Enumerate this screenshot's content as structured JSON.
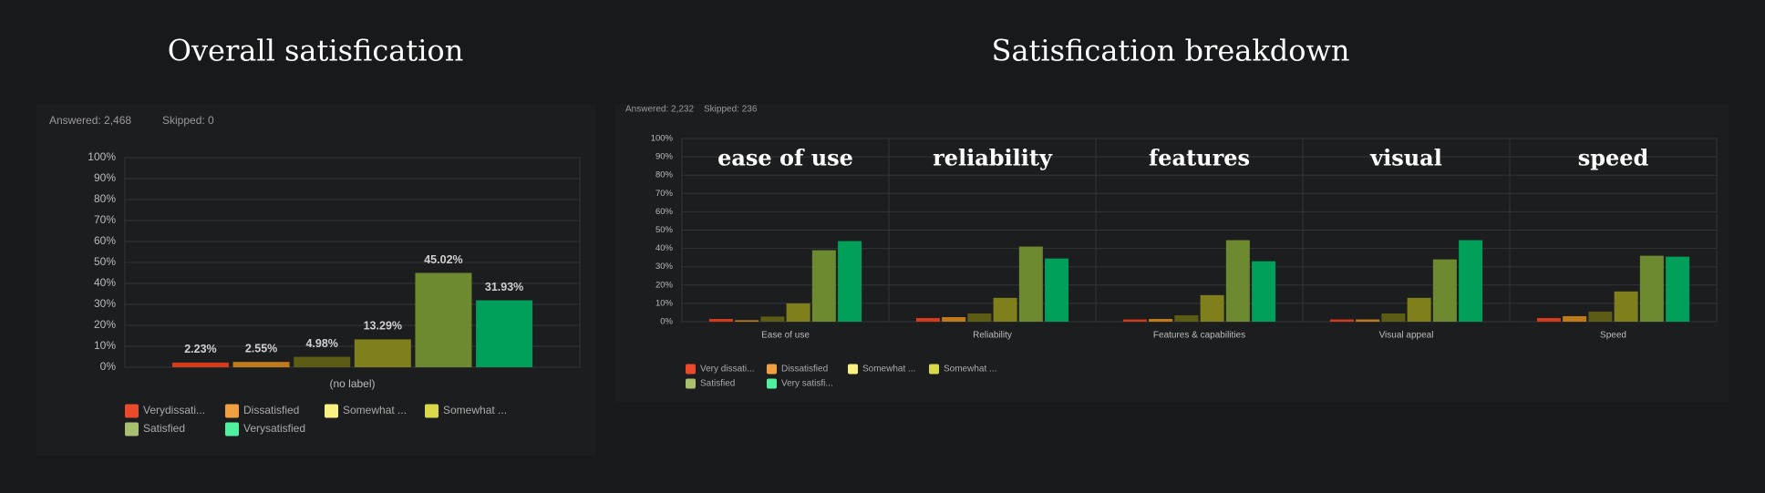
{
  "chart_data": [
    {
      "type": "bar",
      "title": "Overall satisfication",
      "answered": "Answered: 2,468",
      "skipped": "Skipped: 0",
      "categories": [
        "(no label)"
      ],
      "ylim": [
        0,
        100
      ],
      "yticks": [
        {
          "value": 0,
          "label": "0%"
        },
        {
          "value": 10,
          "label": "10%"
        },
        {
          "value": 20,
          "label": "20%"
        },
        {
          "value": 30,
          "label": "30%"
        },
        {
          "value": 40,
          "label": "40%"
        },
        {
          "value": 50,
          "label": "50%"
        },
        {
          "value": 60,
          "label": "60%"
        },
        {
          "value": 70,
          "label": "70%"
        },
        {
          "value": 80,
          "label": "80%"
        },
        {
          "value": 90,
          "label": "90%"
        },
        {
          "value": 100,
          "label": "100%"
        }
      ],
      "grid": true,
      "series": [
        {
          "name": "Verydissati...",
          "color": "#d63a1a",
          "legend_color": "#e84a2a",
          "values": [
            2.23
          ],
          "value_labels": [
            "2.23%"
          ]
        },
        {
          "name": "Dissatisfied",
          "color": "#c07a1a",
          "legend_color": "#f0a040",
          "values": [
            2.55
          ],
          "value_labels": [
            "2.55%"
          ]
        },
        {
          "name": "Somewhat ...",
          "color": "#5c5c14",
          "legend_color": "#f8f080",
          "values": [
            4.98
          ],
          "value_labels": [
            "4.98%"
          ]
        },
        {
          "name": "Somewhat ...",
          "color": "#7f7f1c",
          "legend_color": "#d8d848",
          "values": [
            13.29
          ],
          "value_labels": [
            "13.29%"
          ]
        },
        {
          "name": "Satisfied",
          "color": "#6e8a30",
          "legend_color": "#a8c070",
          "values": [
            45.02
          ],
          "value_labels": [
            "45.02%"
          ]
        },
        {
          "name": "Verysatisfied",
          "color": "#00a05a",
          "legend_color": "#50f0a0",
          "values": [
            31.93
          ],
          "value_labels": [
            "31.93%"
          ]
        }
      ]
    },
    {
      "type": "bar",
      "title": "Satisfication breakdown",
      "answered": "Answered: 2,232",
      "skipped": "Skipped: 236",
      "categories": [
        "Ease of use",
        "Reliability",
        "Features & capabilities",
        "Visual appeal",
        "Speed"
      ],
      "facet_labels": [
        "ease of use",
        "reliability",
        "features",
        "visual",
        "speed"
      ],
      "ylim": [
        0,
        100
      ],
      "yticks": [
        {
          "value": 0,
          "label": "0%"
        },
        {
          "value": 10,
          "label": "10%"
        },
        {
          "value": 20,
          "label": "20%"
        },
        {
          "value": 30,
          "label": "30%"
        },
        {
          "value": 40,
          "label": "40%"
        },
        {
          "value": 50,
          "label": "50%"
        },
        {
          "value": 60,
          "label": "60%"
        },
        {
          "value": 70,
          "label": "70%"
        },
        {
          "value": 80,
          "label": "80%"
        },
        {
          "value": 90,
          "label": "90%"
        },
        {
          "value": 100,
          "label": "100%"
        }
      ],
      "grid": true,
      "series": [
        {
          "name": "Very dissati...",
          "color": "#d63a1a",
          "legend_color": "#e84a2a",
          "values": [
            1.5,
            2,
            1.2,
            1.2,
            2
          ]
        },
        {
          "name": "Dissatisfied",
          "color": "#c07a1a",
          "legend_color": "#f0a040",
          "values": [
            0.8,
            2.5,
            1.5,
            1.2,
            3
          ]
        },
        {
          "name": "Somewhat ...",
          "color": "#5c5c14",
          "legend_color": "#f8f080",
          "values": [
            2.8,
            4.5,
            3.5,
            4.5,
            5.5
          ]
        },
        {
          "name": "Somewhat ...",
          "color": "#7f7f1c",
          "legend_color": "#d8d848",
          "values": [
            10,
            13,
            14.5,
            13,
            16.5
          ]
        },
        {
          "name": "Satisfied",
          "color": "#6e8a30",
          "legend_color": "#a8c070",
          "values": [
            39,
            41,
            44.5,
            34,
            36
          ]
        },
        {
          "name": "Very satisfi...",
          "color": "#00a05a",
          "legend_color": "#50f0a0",
          "values": [
            44,
            34.5,
            33,
            44.5,
            35.5
          ]
        }
      ]
    }
  ]
}
